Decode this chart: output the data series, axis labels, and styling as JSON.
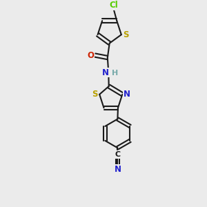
{
  "bg_color": "#ebebeb",
  "bond_color": "#1a1a1a",
  "s_color": "#b8a000",
  "n_color": "#2222cc",
  "o_color": "#cc2200",
  "cl_color": "#55cc00",
  "c_color": "#1a1a1a",
  "lw": 1.5,
  "xlim": [
    0,
    6
  ],
  "ylim": [
    0,
    10
  ]
}
